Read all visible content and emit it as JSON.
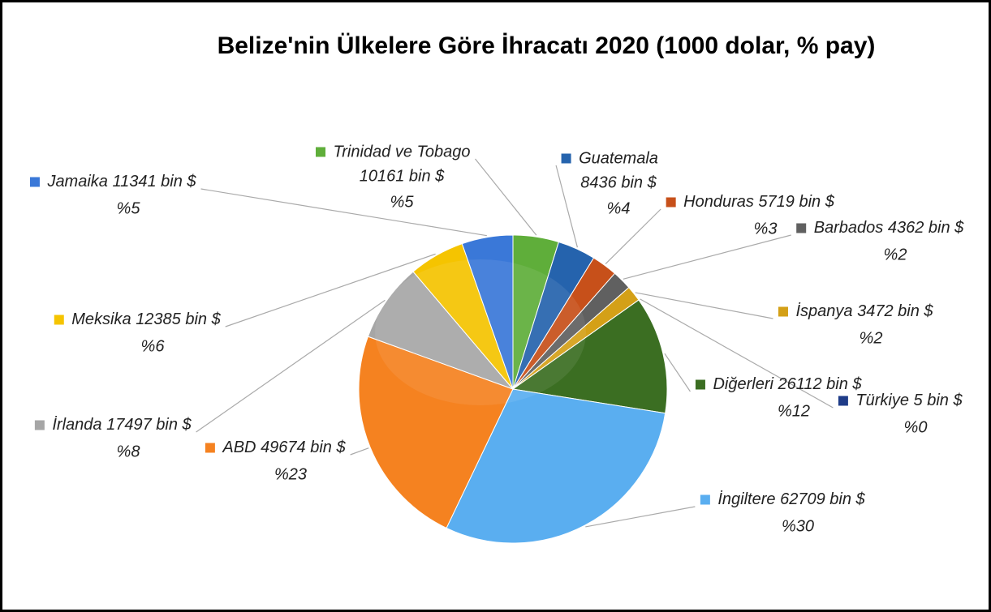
{
  "chart_data": {
    "type": "pie",
    "title": "Belize'nin Ülkelere Göre İhracatı 2020 (1000 dolar, % pay)",
    "categories": [
      "Trinidad ve Tobago",
      "Guatemala",
      "Honduras",
      "Barbados",
      "İspanya",
      "Türkiye",
      "Diğerleri",
      "İngiltere",
      "ABD",
      "İrlanda",
      "Meksika",
      "Jamaika"
    ],
    "values": [
      10161,
      8436,
      5719,
      4362,
      3472,
      5,
      26112,
      62709,
      49674,
      17497,
      12385,
      11341
    ],
    "value_labels": [
      "10161 bin $",
      "8436 bin $",
      "5719 bin $",
      "4362 bin $",
      "3472 bin $",
      "5 bin $",
      "26112 bin $",
      "62709 bin $",
      "49674 bin $",
      "17497 bin $",
      "12385 bin $",
      "11341 bin $"
    ],
    "shares": [
      5,
      4,
      3,
      2,
      2,
      0,
      12,
      30,
      23,
      8,
      6,
      5
    ],
    "share_labels": [
      "%5",
      "%4",
      "%3",
      "%2",
      "%2",
      "%0",
      "%12",
      "%30",
      "%23",
      "%8",
      "%6",
      "%5"
    ],
    "colors": [
      "#5fae3a",
      "#2563ad",
      "#c7501a",
      "#606060",
      "#d4a017",
      "#1f3c88",
      "#3b6e22",
      "#5aaef0",
      "#f58220",
      "#a6a6a6",
      "#f5c400",
      "#3a78d8"
    ]
  }
}
